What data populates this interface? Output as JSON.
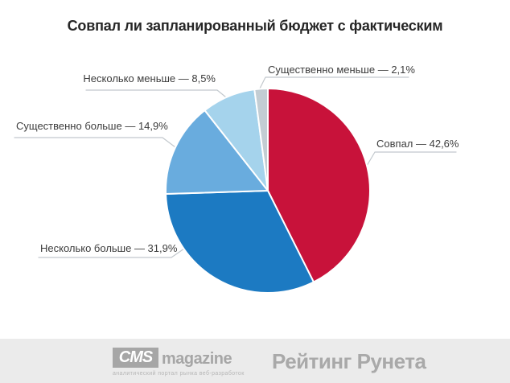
{
  "title": "Совпал ли запланированный бюджет с фактическим",
  "chart_data": {
    "type": "pie",
    "title": "Совпал ли запланированный бюджет с фактическим",
    "categories": [
      "Совпал",
      "Несколько больше",
      "Существенно больше",
      "Несколько меньше",
      "Существенно меньше"
    ],
    "values": [
      42.6,
      31.9,
      14.9,
      8.5,
      2.1
    ],
    "unit": "%",
    "colors": [
      "#c8123a",
      "#1c7ac2",
      "#69acde",
      "#a5d3ec",
      "#c3cdd3"
    ],
    "start_angle_deg": 0,
    "direction": "clockwise",
    "slice_labels": [
      "Совпал — 42,6%",
      "Несколько больше — 31,9%",
      "Существенно больше — 14,9%",
      "Несколько меньше — 8,5%",
      "Существенно меньше — 2,1%"
    ],
    "legend_position": "callout-labels",
    "separator_color": "#ffffff",
    "leader_line_color": "#c2c8cd"
  },
  "footer": {
    "cms": {
      "acronym": "CMS",
      "word": "magazine",
      "tagline": "аналитический портал рынка веб-разработок"
    },
    "rating_runeta": "Рейтинг Рунета"
  }
}
